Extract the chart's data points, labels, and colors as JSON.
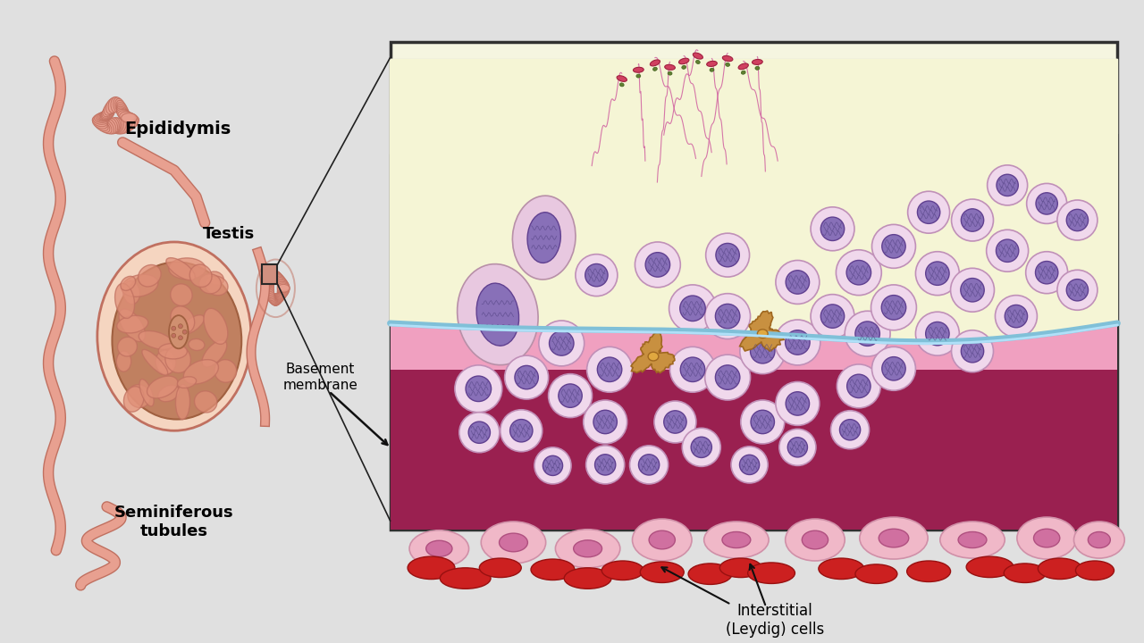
{
  "bg_color": "#e0e0e0",
  "panel_bg": "#f5f5e0",
  "box_border": "#303030",
  "arrow_color": "#101010",
  "labels": {
    "epididymis": "Epididymis",
    "testis": "Testis",
    "basement_membrane": "Basement\nmembrane",
    "seminiferous_tubules": "Seminiferous\ntubules",
    "interstitial_cells": "Interstitial\n(Leydig) cells"
  },
  "colors": {
    "tube_dark": "#c07060",
    "tube_light": "#e8a090",
    "testis_outer": "#f5d5c0",
    "testis_inner": "#c08060",
    "testis_border": "#a06040",
    "lumen": "#f5f5d5",
    "blue_membrane": "#80c0d8",
    "blue_membrane_hi": "#b0e0f8",
    "maroon": "#9a2050",
    "pink_layer": "#f0a0c0",
    "cell_fill": "#f0d8ec",
    "cell_border": "#c090b8",
    "nucleus_fill": "#8870b8",
    "nucleus_border": "#604090",
    "sertoli_fill": "#e8c8e0",
    "sertoli_border": "#b890a8",
    "sertoli_nuc": "#8870b8",
    "leydig_fill": "#c89040",
    "leydig_border": "#a06820",
    "leydig_nuc": "#e0a840",
    "sperm_head": "#d04060",
    "sperm_tail": "#d060a0",
    "sperm_green": "#608030",
    "interst_fill": "#f0b8c8",
    "interst_border": "#d090a8",
    "interst_nuc": "#d070a0",
    "rbc_fill": "#cc2020",
    "rbc_border": "#991010",
    "wavy_line": "#504080"
  }
}
